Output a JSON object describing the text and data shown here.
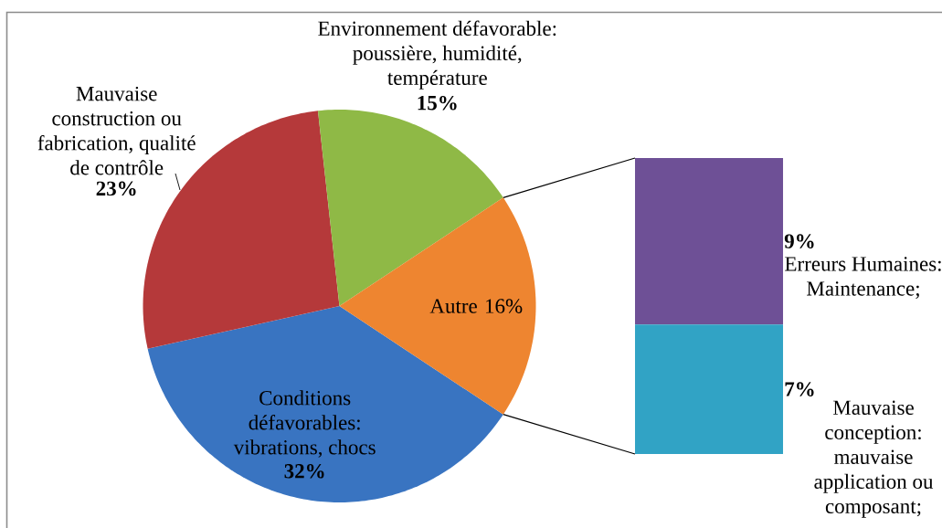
{
  "chart_data": [
    {
      "type": "pie",
      "categories": [
        "Conditions défavorables: vibrations, chocs",
        "Mauvaise construction ou fabrication, qualité de contrôle",
        "Environnement défavorable: poussière, humidité, température",
        "Autre"
      ],
      "values": [
        32,
        23,
        15,
        16
      ],
      "colors": [
        "#3974c1",
        "#b5393a",
        "#8fb946",
        "#ee8530"
      ],
      "value_labels": [
        "32%",
        "23%",
        "15%",
        "16%"
      ]
    },
    {
      "type": "bar",
      "stacked": true,
      "categories": [
        null
      ],
      "series": [
        {
          "name": "Mauvaise conception: mauvaise application ou composant;",
          "color": "#31a3c5",
          "values": [
            7
          ],
          "value_labels": [
            "7%"
          ]
        },
        {
          "name": "Erreurs Humaines: Maintenance;",
          "color": "#6e5096",
          "values": [
            9
          ],
          "value_labels": [
            "9%"
          ]
        }
      ]
    }
  ]
}
